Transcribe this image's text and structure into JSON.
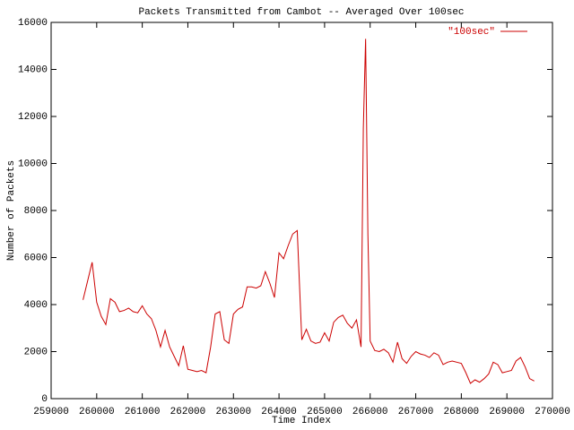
{
  "chart_data": {
    "type": "line",
    "title": "Packets Transmitted from Cambot -- Averaged Over 100sec",
    "x_label": "Time Index",
    "y_label": "Number of Packets",
    "x": [
      259700,
      259900,
      260000,
      260100,
      260200,
      260300,
      260400,
      260500,
      260600,
      260700,
      260800,
      260900,
      261000,
      261100,
      261200,
      261300,
      261400,
      261500,
      261600,
      261700,
      261800,
      261900,
      262000,
      262100,
      262200,
      262300,
      262400,
      262500,
      262600,
      262700,
      262800,
      262900,
      263000,
      263100,
      263200,
      263300,
      263400,
      263500,
      263600,
      263700,
      263800,
      263900,
      264000,
      264100,
      264200,
      264300,
      264400,
      264500,
      264600,
      264700,
      264800,
      264900,
      265000,
      265100,
      265200,
      265300,
      265400,
      265500,
      265600,
      265700,
      265800,
      265850,
      265900,
      265950,
      266000,
      266100,
      266200,
      266300,
      266400,
      266500,
      266600,
      266700,
      266800,
      266900,
      267000,
      267100,
      267200,
      267300,
      267400,
      267500,
      267600,
      267700,
      267800,
      267900,
      268000,
      268100,
      268200,
      268300,
      268400,
      268500,
      268600,
      268700,
      268800,
      268900,
      269000,
      269100,
      269200,
      269300,
      269400,
      269500,
      269600
    ],
    "series": [
      {
        "name": "\"100sec\"",
        "color": "#cc0000",
        "values": [
          4200,
          5800,
          4100,
          3500,
          3150,
          4250,
          4100,
          3700,
          3750,
          3850,
          3700,
          3650,
          3950,
          3600,
          3400,
          2900,
          2200,
          2900,
          2200,
          1800,
          1400,
          2250,
          1250,
          1200,
          1150,
          1200,
          1100,
          2200,
          3600,
          3700,
          2500,
          2350,
          3600,
          3800,
          3900,
          4750,
          4750,
          4700,
          4800,
          5400,
          4900,
          4300,
          6200,
          5950,
          6500,
          7000,
          7150,
          2500,
          2950,
          2450,
          2350,
          2400,
          2800,
          2450,
          3250,
          3450,
          3550,
          3200,
          3000,
          3350,
          2200,
          11500,
          15300,
          7000,
          2450,
          2050,
          2000,
          2100,
          1950,
          1550,
          2400,
          1700,
          1500,
          1800,
          2000,
          1900,
          1850,
          1750,
          1950,
          1850,
          1450,
          1550,
          1600,
          1550,
          1500,
          1100,
          650,
          800,
          700,
          850,
          1050,
          1550,
          1450,
          1100,
          1150,
          1200,
          1600,
          1750,
          1350,
          850,
          750
        ]
      }
    ],
    "xlim": [
      259000,
      270000
    ],
    "xticks": [
      259000,
      260000,
      261000,
      262000,
      263000,
      264000,
      265000,
      266000,
      267000,
      268000,
      269000,
      270000
    ],
    "ylim": [
      0,
      16000
    ],
    "yticks": [
      0,
      2000,
      4000,
      6000,
      8000,
      10000,
      12000,
      14000,
      16000
    ],
    "legend": "upper right"
  }
}
